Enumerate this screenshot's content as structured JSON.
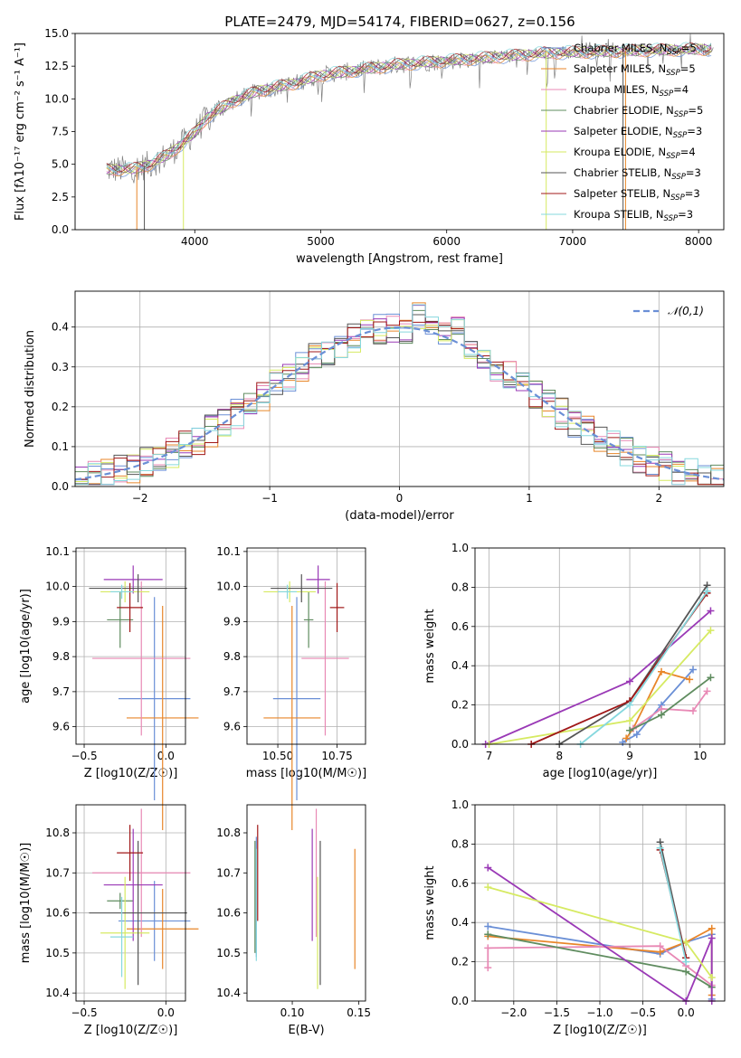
{
  "colors": {
    "chabrier_miles": "#6a8fd6",
    "salpeter_miles": "#e8862a",
    "kroupa_miles": "#e889b5",
    "chabrier_elodie": "#5f8c5f",
    "salpeter_elodie": "#9a39b6",
    "kroupa_elodie": "#d6ea62",
    "chabrier_stelib": "#555555",
    "salpeter_stelib": "#a01818",
    "kroupa_stelib": "#86d8de",
    "gauss": "#6a8fd6"
  },
  "chart_data": [
    {
      "id": "spectrum",
      "type": "line",
      "title": "PLATE=2479, MJD=54174, FIBERID=0627, z=0.156",
      "xlabel": "wavelength [Angstrom, rest frame]",
      "ylabel": "Flux [fλ10⁻¹⁷ erg cm⁻² s⁻¹ A⁻¹]",
      "xlim": [
        3050,
        8200
      ],
      "ylim": [
        0,
        15
      ],
      "xticks": [
        4000,
        5000,
        6000,
        7000,
        8000
      ],
      "yticks": [
        0.0,
        2.5,
        5.0,
        7.5,
        10.0,
        12.5,
        15.0
      ],
      "legend_position": "right",
      "legend": [
        "Chabrier MILES, N_SSP=5",
        "Salpeter MILES, N_SSP=5",
        "Kroupa MILES, N_SSP=4",
        "Chabrier ELODIE, N_SSP=5",
        "Salpeter ELODIE, N_SSP=3",
        "Kroupa ELODIE, N_SSP=4",
        "Chabrier STELIB, N_SSP=3",
        "Salpeter STELIB, N_SSP=3",
        "Kroupa STELIB, N_SSP=3"
      ],
      "continuum": {
        "x": [
          3300,
          3500,
          3650,
          3800,
          4000,
          4100,
          4300,
          4500,
          4800,
          5000,
          5300,
          5600,
          6000,
          6400,
          6800,
          7200,
          7600,
          8000,
          8200
        ],
        "y": [
          4.6,
          4.6,
          5.0,
          5.8,
          7.4,
          8.6,
          9.8,
          10.6,
          11.2,
          11.8,
          12.2,
          12.6,
          12.9,
          13.2,
          13.5,
          13.6,
          13.7,
          13.8,
          13.8
        ]
      },
      "model_edges": [
        {
          "series": "Salpeter MILES",
          "start": 3540,
          "end": 7420
        },
        {
          "series": "Kroupa ELODIE",
          "start": 3910,
          "end": 6790
        },
        {
          "series": "Chabrier STELIB",
          "start": 3600,
          "end": 7400
        }
      ],
      "data_line_color": "#808080"
    },
    {
      "id": "residual_hist",
      "type": "line",
      "xlabel": "(data-model)/error",
      "ylabel": "Normed distribution",
      "xlim": [
        -2.5,
        2.5
      ],
      "ylim": [
        0,
        0.49
      ],
      "xticks": [
        -2,
        -1,
        0,
        1,
        2
      ],
      "yticks": [
        0.0,
        0.1,
        0.2,
        0.3,
        0.4
      ],
      "grid": true,
      "legend": [
        "𝒩(0,1)"
      ],
      "legend_position": "top-right",
      "bin_width": 0.1
    },
    {
      "id": "age_vs_Z",
      "type": "scatter",
      "xlabel": "Z [log10(Z/Z☉)]",
      "ylabel": "age  [log10(age/yr)]",
      "xlim": [
        -0.55,
        0.12
      ],
      "ylim": [
        9.55,
        10.11
      ],
      "xticks": [
        -0.5,
        0.0
      ],
      "yticks": [
        9.6,
        9.7,
        9.8,
        9.9,
        10.0,
        10.1
      ],
      "grid": true,
      "points": [
        {
          "series": "Chabrier MILES",
          "x": -0.07,
          "xerr": 0.22,
          "y": 9.68,
          "yerr": 0.29
        },
        {
          "series": "Salpeter MILES",
          "x": -0.02,
          "xerr": 0.22,
          "y": 9.625,
          "yerr": 0.32
        },
        {
          "series": "Kroupa MILES",
          "x": -0.15,
          "xerr": 0.3,
          "y": 9.795,
          "yerr": 0.22
        },
        {
          "series": "Chabrier ELODIE",
          "x": -0.28,
          "xerr": 0.08,
          "y": 9.905,
          "yerr": 0.08
        },
        {
          "series": "Salpeter ELODIE",
          "x": -0.2,
          "xerr": 0.18,
          "y": 10.02,
          "yerr": 0.04
        },
        {
          "series": "Kroupa ELODIE",
          "x": -0.25,
          "xerr": 0.15,
          "y": 9.985,
          "yerr": 0.03
        },
        {
          "series": "Chabrier STELIB",
          "x": -0.17,
          "xerr": 0.3,
          "y": 9.995,
          "yerr": 0.04
        },
        {
          "series": "Salpeter STELIB",
          "x": -0.22,
          "xerr": 0.08,
          "y": 9.94,
          "yerr": 0.07
        },
        {
          "series": "Kroupa STELIB",
          "x": -0.27,
          "xerr": 0.07,
          "y": 9.985,
          "yerr": 0.02
        }
      ]
    },
    {
      "id": "age_vs_mass",
      "type": "scatter",
      "xlabel": "mass [log10(M/M☉)]",
      "ylabel": "",
      "xlim": [
        10.37,
        10.87
      ],
      "ylim": [
        9.55,
        10.11
      ],
      "xticks": [
        10.5,
        10.75
      ],
      "yticks": [
        9.6,
        9.7,
        9.8,
        9.9,
        10.0,
        10.1
      ],
      "grid": true,
      "points": [
        {
          "series": "Chabrier MILES",
          "x": 10.58,
          "xerr": 0.1,
          "y": 9.68,
          "yerr": 0.29
        },
        {
          "series": "Salpeter MILES",
          "x": 10.56,
          "xerr": 0.12,
          "y": 9.625,
          "yerr": 0.32
        },
        {
          "series": "Kroupa MILES",
          "x": 10.7,
          "xerr": 0.1,
          "y": 9.795,
          "yerr": 0.22
        },
        {
          "series": "Chabrier ELODIE",
          "x": 10.63,
          "xerr": 0.02,
          "y": 9.905,
          "yerr": 0.08
        },
        {
          "series": "Salpeter ELODIE",
          "x": 10.67,
          "xerr": 0.05,
          "y": 10.02,
          "yerr": 0.04
        },
        {
          "series": "Kroupa ELODIE",
          "x": 10.55,
          "xerr": 0.11,
          "y": 9.985,
          "yerr": 0.03
        },
        {
          "series": "Chabrier STELIB",
          "x": 10.6,
          "xerr": 0.13,
          "y": 9.995,
          "yerr": 0.04
        },
        {
          "series": "Salpeter STELIB",
          "x": 10.75,
          "xerr": 0.03,
          "y": 9.94,
          "yerr": 0.07
        },
        {
          "series": "Kroupa STELIB",
          "x": 10.54,
          "xerr": 0.04,
          "y": 9.985,
          "yerr": 0.02
        }
      ]
    },
    {
      "id": "weight_vs_age",
      "type": "line",
      "xlabel": "age  [log10(age/yr)]",
      "ylabel": "mass weight",
      "xlim": [
        6.8,
        10.35
      ],
      "ylim": [
        0,
        1
      ],
      "xticks": [
        7,
        8,
        9,
        10
      ],
      "yticks": [
        0.0,
        0.2,
        0.4,
        0.6,
        0.8,
        1.0
      ],
      "grid": true,
      "series": [
        {
          "name": "Chabrier MILES",
          "x": [
            8.9,
            9.1,
            9.45,
            9.9
          ],
          "y": [
            0.01,
            0.05,
            0.2,
            0.38
          ]
        },
        {
          "name": "Salpeter MILES",
          "x": [
            8.95,
            9.05,
            9.45,
            9.85
          ],
          "y": [
            0.03,
            0.08,
            0.37,
            0.33
          ]
        },
        {
          "name": "Kroupa MILES",
          "x": [
            9.05,
            9.45,
            9.9,
            10.1
          ],
          "y": [
            0.08,
            0.18,
            0.17,
            0.27
          ]
        },
        {
          "name": "Chabrier ELODIE",
          "x": [
            9.0,
            9.45,
            10.15
          ],
          "y": [
            0.07,
            0.15,
            0.34
          ]
        },
        {
          "name": "Salpeter ELODIE",
          "x": [
            6.95,
            9.0,
            10.15
          ],
          "y": [
            0.0,
            0.32,
            0.68
          ]
        },
        {
          "name": "Kroupa ELODIE",
          "x": [
            7.0,
            9.0,
            10.15
          ],
          "y": [
            0.0,
            0.12,
            0.58
          ]
        },
        {
          "name": "Chabrier STELIB",
          "x": [
            8.0,
            9.0,
            10.1
          ],
          "y": [
            0.0,
            0.22,
            0.81
          ]
        },
        {
          "name": "Salpeter STELIB",
          "x": [
            7.6,
            9.0,
            10.1
          ],
          "y": [
            0.0,
            0.22,
            0.77
          ]
        },
        {
          "name": "Kroupa STELIB",
          "x": [
            8.3,
            9.0,
            10.1
          ],
          "y": [
            0.0,
            0.2,
            0.78
          ]
        }
      ]
    },
    {
      "id": "mass_vs_Z",
      "type": "scatter",
      "xlabel": "Z [log10(Z/Z☉)]",
      "ylabel": "mass [log10(M/M☉)]",
      "xlim": [
        -0.55,
        0.12
      ],
      "ylim": [
        10.38,
        10.87
      ],
      "xticks": [
        -0.5,
        0.0
      ],
      "yticks": [
        10.4,
        10.5,
        10.6,
        10.7,
        10.8
      ],
      "grid": true,
      "points": [
        {
          "series": "Chabrier MILES",
          "x": -0.07,
          "xerr": 0.22,
          "y": 10.58,
          "yerr": 0.1
        },
        {
          "series": "Salpeter MILES",
          "x": -0.02,
          "xerr": 0.22,
          "y": 10.56,
          "yerr": 0.1
        },
        {
          "series": "Kroupa MILES",
          "x": -0.15,
          "xerr": 0.3,
          "y": 10.7,
          "yerr": 0.16
        },
        {
          "series": "Chabrier ELODIE",
          "x": -0.28,
          "xerr": 0.08,
          "y": 10.63,
          "yerr": 0.02
        },
        {
          "series": "Salpeter ELODIE",
          "x": -0.2,
          "xerr": 0.18,
          "y": 10.67,
          "yerr": 0.14
        },
        {
          "series": "Kroupa ELODIE",
          "x": -0.25,
          "xerr": 0.15,
          "y": 10.55,
          "yerr": 0.14
        },
        {
          "series": "Chabrier STELIB",
          "x": -0.17,
          "xerr": 0.3,
          "y": 10.6,
          "yerr": 0.18
        },
        {
          "series": "Salpeter STELIB",
          "x": -0.22,
          "xerr": 0.08,
          "y": 10.75,
          "yerr": 0.07
        },
        {
          "series": "Kroupa STELIB",
          "x": -0.27,
          "xerr": 0.07,
          "y": 10.54,
          "yerr": 0.1
        }
      ]
    },
    {
      "id": "mass_vs_ebv",
      "type": "scatter",
      "xlabel": "E(B-V)",
      "ylabel": "",
      "xlim": [
        0.066,
        0.155
      ],
      "ylim": [
        10.38,
        10.87
      ],
      "xticks": [
        0.1,
        0.15
      ],
      "yticks": [
        10.4,
        10.5,
        10.6,
        10.7,
        10.8
      ],
      "grid": false,
      "points": [
        {
          "series": "Chabrier MILES",
          "x": 0.073,
          "y": 10.64,
          "yerr": 0.15
        },
        {
          "series": "Salpeter MILES",
          "x": 0.147,
          "y": 10.61,
          "yerr": 0.15
        },
        {
          "series": "Kroupa MILES",
          "x": 0.118,
          "y": 10.7,
          "yerr": 0.16
        },
        {
          "series": "Chabrier ELODIE",
          "x": 0.072,
          "y": 10.64,
          "yerr": 0.14
        },
        {
          "series": "Salpeter ELODIE",
          "x": 0.115,
          "y": 10.67,
          "yerr": 0.14
        },
        {
          "series": "Kroupa ELODIE",
          "x": 0.119,
          "y": 10.55,
          "yerr": 0.14
        },
        {
          "series": "Chabrier STELIB",
          "x": 0.121,
          "y": 10.6,
          "yerr": 0.18
        },
        {
          "series": "Salpeter STELIB",
          "x": 0.074,
          "y": 10.7,
          "yerr": 0.12
        },
        {
          "series": "Kroupa STELIB",
          "x": 0.073,
          "y": 10.62,
          "yerr": 0.14
        }
      ]
    },
    {
      "id": "weight_vs_Z",
      "type": "line",
      "xlabel": "Z [log10(Z/Z☉)]",
      "ylabel": "mass weight",
      "xlim": [
        -2.45,
        0.45
      ],
      "ylim": [
        0,
        1
      ],
      "xticks": [
        -2.0,
        -1.5,
        -1.0,
        -0.5,
        0.0
      ],
      "yticks": [
        0.0,
        0.2,
        0.4,
        0.6,
        0.8,
        1.0
      ],
      "grid": true,
      "series": [
        {
          "name": "Chabrier MILES",
          "x": [
            -2.3,
            -0.3,
            0.0,
            0.3,
            0.3
          ],
          "y": [
            0.38,
            0.24,
            0.3,
            0.34,
            0.01
          ]
        },
        {
          "name": "Salpeter MILES",
          "x": [
            -2.3,
            -0.3,
            0.0,
            0.3,
            0.3
          ],
          "y": [
            0.33,
            0.25,
            0.3,
            0.37,
            0.03
          ]
        },
        {
          "name": "Kroupa MILES",
          "x": [
            -2.3,
            -2.3,
            -0.3,
            0.0,
            0.3
          ],
          "y": [
            0.17,
            0.27,
            0.28,
            0.18,
            0.08
          ]
        },
        {
          "name": "Chabrier ELODIE",
          "x": [
            -2.3,
            0.0,
            0.3
          ],
          "y": [
            0.34,
            0.15,
            0.07
          ]
        },
        {
          "name": "Salpeter ELODIE",
          "x": [
            -2.3,
            0.0,
            0.3,
            0.3
          ],
          "y": [
            0.68,
            0.0,
            0.32,
            0.0
          ]
        },
        {
          "name": "Kroupa ELODIE",
          "x": [
            -2.3,
            0.0,
            0.3
          ],
          "y": [
            0.58,
            0.3,
            0.12
          ]
        },
        {
          "name": "Chabrier STELIB",
          "x": [
            -0.3,
            0.0
          ],
          "y": [
            0.81,
            0.22
          ]
        },
        {
          "name": "Salpeter STELIB",
          "x": [
            -0.3,
            0.0
          ],
          "y": [
            0.77,
            0.22
          ]
        },
        {
          "name": "Kroupa STELIB",
          "x": [
            -0.3,
            0.0
          ],
          "y": [
            0.78,
            0.2
          ]
        }
      ]
    }
  ]
}
